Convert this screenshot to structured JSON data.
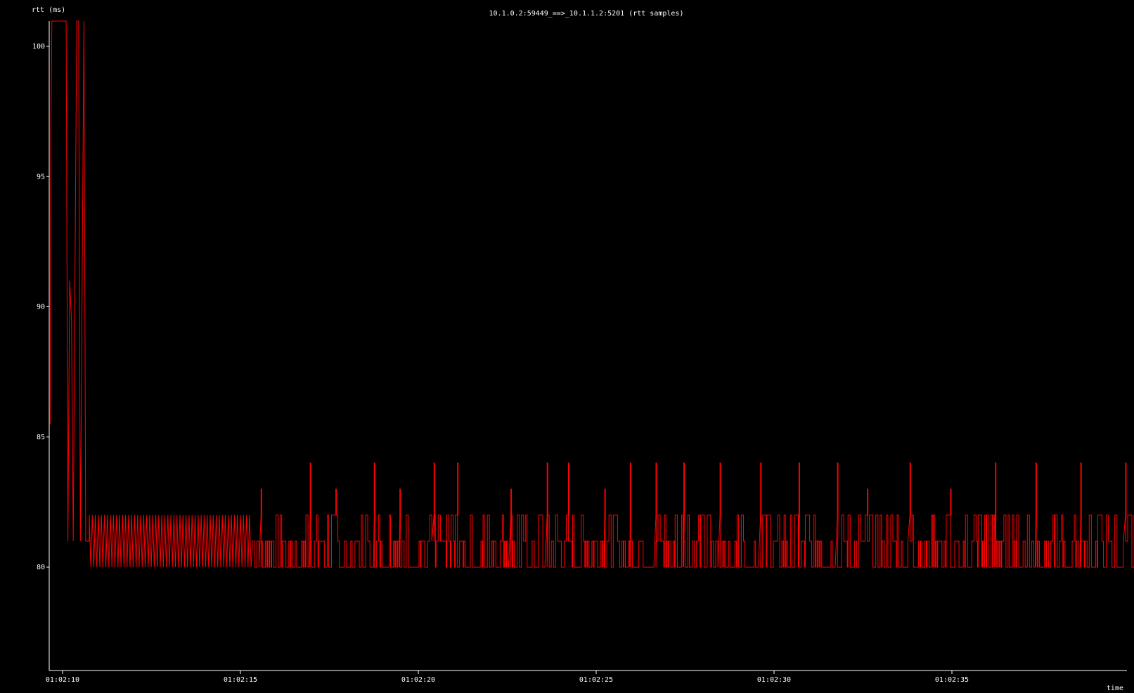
{
  "chart_data": {
    "type": "line",
    "title": "10.1.0.2:59449_==>_10.1.1.2:5201 (rtt samples)",
    "xlabel": "time",
    "ylabel": "rtt (ms)",
    "background_color": "#000000",
    "axis_color": "#ffffff",
    "text_color": "#ffffff",
    "series_color": "#ff0000",
    "x_axis": {
      "type": "time",
      "start_seconds": 0,
      "end_seconds": 30.15,
      "ticks": [
        {
          "label": "01:02:10",
          "t": 0
        },
        {
          "label": "01:02:15",
          "t": 5
        },
        {
          "label": "01:02:20",
          "t": 10
        },
        {
          "label": "01:02:25",
          "t": 15
        },
        {
          "label": "01:02:30",
          "t": 20
        },
        {
          "label": "01:02:35",
          "t": 25
        }
      ]
    },
    "y_axis": {
      "ylim": [
        76,
        101
      ],
      "ticks": [
        {
          "label": "80",
          "value": 80
        },
        {
          "label": "85",
          "value": 85
        },
        {
          "label": "90",
          "value": 90
        },
        {
          "label": "95",
          "value": 95
        },
        {
          "label": "100",
          "value": 100
        }
      ]
    },
    "grid": false,
    "legend": "none",
    "series": [
      {
        "color": "#ff0000",
        "initial_spikes": [
          {
            "t": -0.35,
            "value": 85.5
          },
          {
            "t": -0.33,
            "value": 96.5
          },
          {
            "t": -0.3,
            "value": 101
          },
          {
            "t": 0.1,
            "value": 101
          },
          {
            "t": 0.15,
            "value": 81
          },
          {
            "t": 0.2,
            "value": 91
          },
          {
            "t": 0.25,
            "value": 89.5
          },
          {
            "t": 0.3,
            "value": 81
          },
          {
            "t": 0.35,
            "value": 91.5
          },
          {
            "t": 0.4,
            "value": 101
          },
          {
            "t": 0.45,
            "value": 101
          },
          {
            "t": 0.5,
            "value": 81
          },
          {
            "t": 0.6,
            "value": 101
          },
          {
            "t": 0.65,
            "value": 81
          },
          {
            "t": 0.75,
            "value": 81
          }
        ],
        "baseline_low": 80,
        "baseline_high": 81,
        "upper_level": 82,
        "spike_levels": [
          83,
          84
        ],
        "dense_region_start_t": 0.75,
        "dense_region_end_t": 30.15,
        "spikes": [
          {
            "t": 5.55,
            "value": 83
          },
          {
            "t": 6.95,
            "value": 84
          },
          {
            "t": 7.7,
            "value": 83
          },
          {
            "t": 8.75,
            "value": 84
          },
          {
            "t": 9.5,
            "value": 83
          },
          {
            "t": 10.45,
            "value": 84
          },
          {
            "t": 11.1,
            "value": 84
          },
          {
            "t": 12.6,
            "value": 83
          },
          {
            "t": 13.65,
            "value": 84
          },
          {
            "t": 14.25,
            "value": 84
          },
          {
            "t": 15.25,
            "value": 83
          },
          {
            "t": 15.95,
            "value": 84
          },
          {
            "t": 16.7,
            "value": 84
          },
          {
            "t": 17.45,
            "value": 84
          },
          {
            "t": 18.5,
            "value": 84
          },
          {
            "t": 19.6,
            "value": 84
          },
          {
            "t": 20.7,
            "value": 84
          },
          {
            "t": 21.8,
            "value": 84
          },
          {
            "t": 22.6,
            "value": 83
          },
          {
            "t": 23.8,
            "value": 84
          },
          {
            "t": 24.95,
            "value": 83
          },
          {
            "t": 26.2,
            "value": 84
          },
          {
            "t": 27.35,
            "value": 84
          },
          {
            "t": 28.6,
            "value": 84
          },
          {
            "t": 29.85,
            "value": 84
          }
        ]
      }
    ]
  }
}
